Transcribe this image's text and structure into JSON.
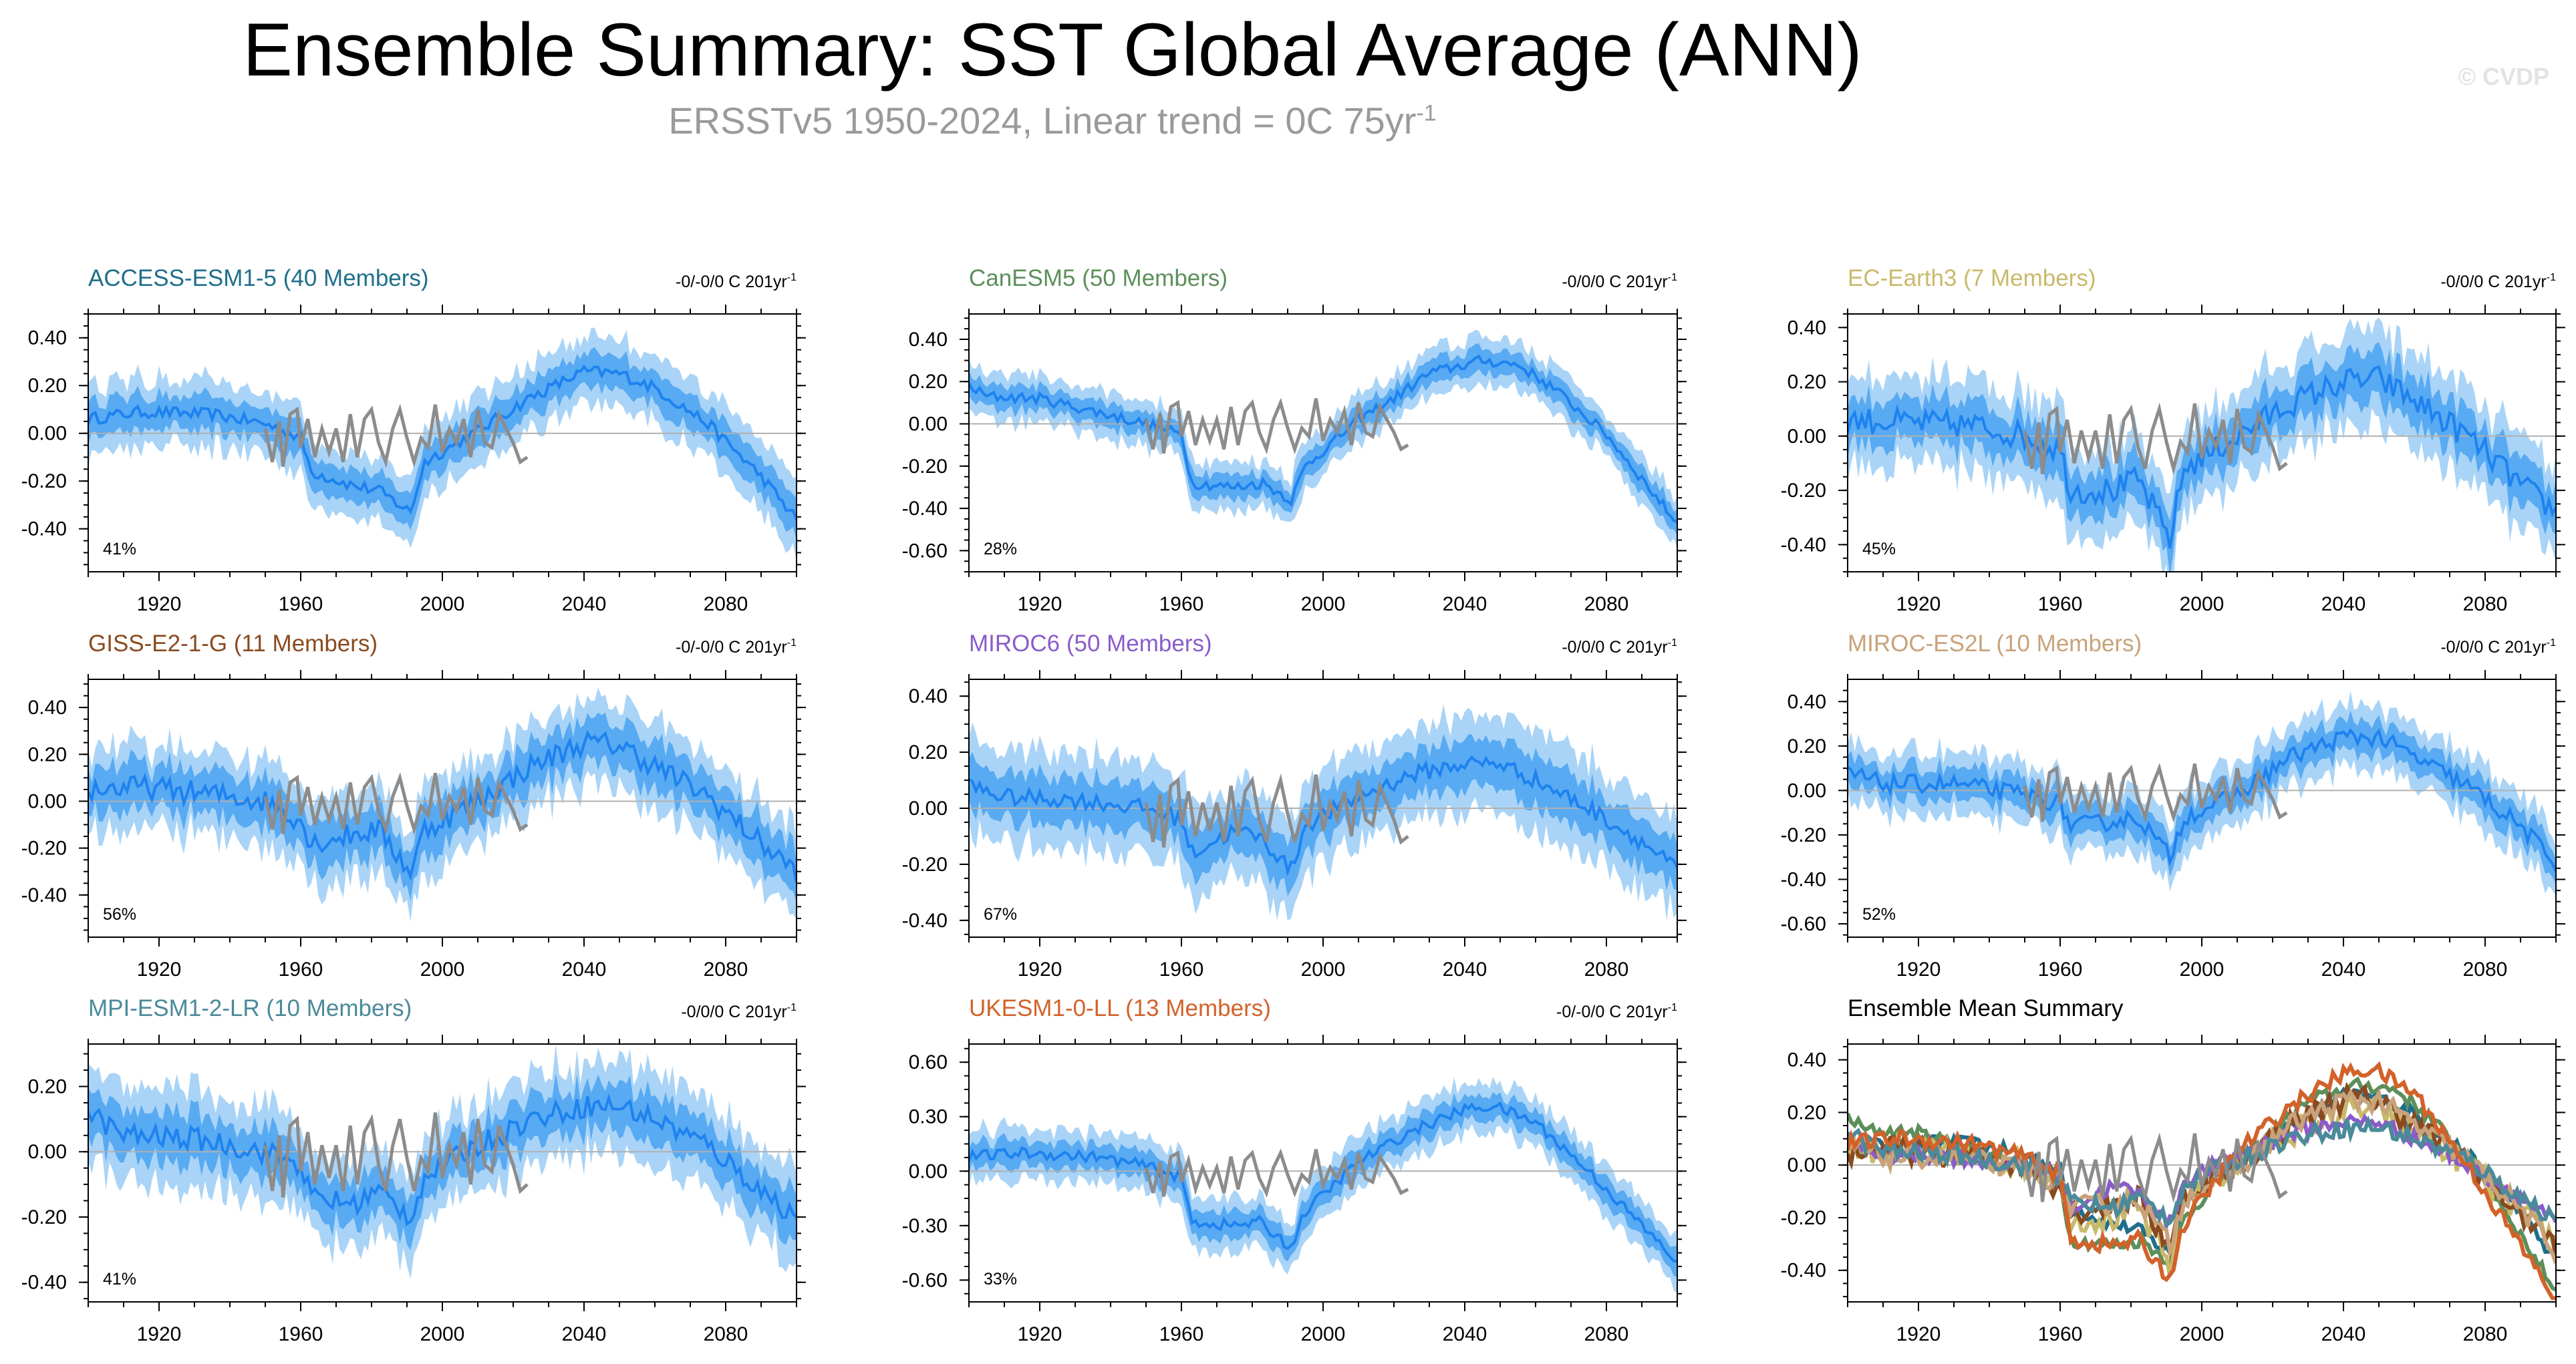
{
  "page": {
    "title": "Ensemble Summary: SST Global Average (ANN)",
    "subtitle": "ERSSTv5 1950-2024, Linear trend = 0C 75yr",
    "subtitle_sup": "-1",
    "watermark": "© CVDP"
  },
  "colors": {
    "obs": "#8c8c8c",
    "band_outer": "#a9d4f7",
    "band_inner": "#58aaf2",
    "mean_line": "#1e82f0",
    "zero_line": "#b0b0b0",
    "axis": "#000000"
  },
  "chart_data": [
    {
      "type": "line",
      "title": "ACCESS-ESM1-5 (40 Members)",
      "title_color": "#1f6f8b",
      "trend_label": "-0/-0/0 C 201yr",
      "trend_sup": "-1",
      "percent_label": "41%",
      "x_ticks": [
        1920,
        1960,
        2000,
        2040,
        2080
      ],
      "xlim": [
        1900,
        2100
      ],
      "y_ticks": [
        0.4,
        0.2,
        0.0,
        -0.2,
        -0.4
      ],
      "y_tick_labels": [
        "0.40",
        "0.20",
        "0.00",
        "-0.20",
        "-0.40"
      ],
      "ylim": [
        -0.58,
        0.5
      ],
      "mean_knots": [
        [
          1900,
          0.06
        ],
        [
          1915,
          0.09
        ],
        [
          1935,
          0.08
        ],
        [
          1950,
          0.04
        ],
        [
          1960,
          -0.02
        ],
        [
          1963,
          -0.16
        ],
        [
          1975,
          -0.22
        ],
        [
          1982,
          -0.24
        ],
        [
          1991,
          -0.33
        ],
        [
          1995,
          -0.12
        ],
        [
          2010,
          0.01
        ],
        [
          2025,
          0.15
        ],
        [
          2040,
          0.26
        ],
        [
          2050,
          0.25
        ],
        [
          2060,
          0.19
        ],
        [
          2075,
          0.04
        ],
        [
          2090,
          -0.18
        ],
        [
          2100,
          -0.36
        ]
      ],
      "noise": 0.025,
      "inner": 0.05,
      "outer": 0.1
    },
    {
      "type": "line",
      "title": "CanESM5 (50 Members)",
      "title_color": "#5c8f5a",
      "trend_label": "-0/0/0 C 201yr",
      "trend_sup": "-1",
      "percent_label": "28%",
      "x_ticks": [
        1920,
        1960,
        2000,
        2040,
        2080
      ],
      "xlim": [
        1900,
        2100
      ],
      "y_ticks": [
        0.4,
        0.2,
        0.0,
        -0.2,
        -0.4,
        -0.6
      ],
      "y_tick_labels": [
        "0.40",
        "0.20",
        "0.00",
        "-0.20",
        "-0.40",
        "-0.60"
      ],
      "ylim": [
        -0.7,
        0.52
      ],
      "mean_knots": [
        [
          1900,
          0.18
        ],
        [
          1905,
          0.13
        ],
        [
          1920,
          0.12
        ],
        [
          1935,
          0.06
        ],
        [
          1950,
          0.0
        ],
        [
          1960,
          -0.05
        ],
        [
          1963,
          -0.28
        ],
        [
          1975,
          -0.3
        ],
        [
          1983,
          -0.28
        ],
        [
          1991,
          -0.36
        ],
        [
          1995,
          -0.2
        ],
        [
          2010,
          0.02
        ],
        [
          2020,
          0.12
        ],
        [
          2030,
          0.24
        ],
        [
          2045,
          0.3
        ],
        [
          2055,
          0.28
        ],
        [
          2065,
          0.17
        ],
        [
          2080,
          -0.05
        ],
        [
          2090,
          -0.26
        ],
        [
          2100,
          -0.47
        ]
      ],
      "noise": 0.025,
      "inner": 0.04,
      "outer": 0.08
    },
    {
      "type": "line",
      "title": "EC-Earth3 (7 Members)",
      "title_color": "#c9b96a",
      "trend_label": "-0/0/0 C 201yr",
      "trend_sup": "-1",
      "percent_label": "45%",
      "x_ticks": [
        1920,
        1960,
        2000,
        2040,
        2080
      ],
      "xlim": [
        1900,
        2100
      ],
      "y_ticks": [
        0.4,
        0.2,
        0.0,
        -0.2,
        -0.4
      ],
      "y_tick_labels": [
        "0.40",
        "0.20",
        "0.00",
        "-0.20",
        "-0.40"
      ],
      "ylim": [
        -0.5,
        0.45
      ],
      "mean_knots": [
        [
          1900,
          0.06
        ],
        [
          1915,
          0.05
        ],
        [
          1935,
          0.04
        ],
        [
          1950,
          0.0
        ],
        [
          1960,
          -0.05
        ],
        [
          1963,
          -0.2
        ],
        [
          1975,
          -0.2
        ],
        [
          1982,
          -0.16
        ],
        [
          1991,
          -0.38
        ],
        [
          1995,
          -0.12
        ],
        [
          2010,
          0.0
        ],
        [
          2025,
          0.12
        ],
        [
          2040,
          0.2
        ],
        [
          2050,
          0.21
        ],
        [
          2060,
          0.13
        ],
        [
          2075,
          0.0
        ],
        [
          2090,
          -0.18
        ],
        [
          2100,
          -0.28
        ]
      ],
      "noise": 0.05,
      "inner": 0.06,
      "outer": 0.12
    },
    {
      "type": "line",
      "title": "GISS-E2-1-G (11 Members)",
      "title_color": "#8a4a1f",
      "trend_label": "-0/-0/0 C 201yr",
      "trend_sup": "-1",
      "percent_label": "56%",
      "x_ticks": [
        1920,
        1960,
        2000,
        2040,
        2080
      ],
      "xlim": [
        1900,
        2100
      ],
      "y_ticks": [
        0.4,
        0.2,
        0.0,
        -0.2,
        -0.4
      ],
      "y_tick_labels": [
        "0.40",
        "0.20",
        "0.00",
        "-0.20",
        "-0.40"
      ],
      "ylim": [
        -0.58,
        0.52
      ],
      "mean_knots": [
        [
          1900,
          0.05
        ],
        [
          1915,
          0.06
        ],
        [
          1935,
          0.03
        ],
        [
          1950,
          0.0
        ],
        [
          1960,
          -0.08
        ],
        [
          1963,
          -0.18
        ],
        [
          1975,
          -0.14
        ],
        [
          1982,
          -0.12
        ],
        [
          1991,
          -0.3
        ],
        [
          1995,
          -0.12
        ],
        [
          2010,
          0.0
        ],
        [
          2025,
          0.15
        ],
        [
          2040,
          0.25
        ],
        [
          2050,
          0.24
        ],
        [
          2060,
          0.15
        ],
        [
          2075,
          0.02
        ],
        [
          2090,
          -0.18
        ],
        [
          2100,
          -0.3
        ]
      ],
      "noise": 0.05,
      "inner": 0.07,
      "outer": 0.13
    },
    {
      "type": "line",
      "title": "MIROC6 (50 Members)",
      "title_color": "#8a5cc9",
      "trend_label": "-0/0/0 C 201yr",
      "trend_sup": "-1",
      "percent_label": "67%",
      "x_ticks": [
        1920,
        1960,
        2000,
        2040,
        2080
      ],
      "xlim": [
        1900,
        2100
      ],
      "y_ticks": [
        0.4,
        0.2,
        0.0,
        -0.2,
        -0.4
      ],
      "y_tick_labels": [
        "0.40",
        "0.20",
        "0.00",
        "-0.20",
        "-0.40"
      ],
      "ylim": [
        -0.46,
        0.46
      ],
      "mean_knots": [
        [
          1900,
          0.08
        ],
        [
          1910,
          0.04
        ],
        [
          1930,
          0.03
        ],
        [
          1950,
          0.0
        ],
        [
          1960,
          -0.04
        ],
        [
          1963,
          -0.16
        ],
        [
          1975,
          -0.08
        ],
        [
          1982,
          -0.1
        ],
        [
          1991,
          -0.22
        ],
        [
          1995,
          -0.06
        ],
        [
          2010,
          0.04
        ],
        [
          2025,
          0.12
        ],
        [
          2040,
          0.16
        ],
        [
          2050,
          0.16
        ],
        [
          2060,
          0.1
        ],
        [
          2075,
          0.0
        ],
        [
          2090,
          -0.12
        ],
        [
          2100,
          -0.22
        ]
      ],
      "noise": 0.03,
      "inner": 0.06,
      "outer": 0.12
    },
    {
      "type": "line",
      "title": "MIROC-ES2L (10 Members)",
      "title_color": "#c8a27a",
      "trend_label": "-0/0/0 C 201yr",
      "trend_sup": "-1",
      "percent_label": "52%",
      "x_ticks": [
        1920,
        1960,
        2000,
        2040,
        2080
      ],
      "xlim": [
        1900,
        2100
      ],
      "y_ticks": [
        0.4,
        0.2,
        0.0,
        -0.2,
        -0.4,
        -0.6
      ],
      "y_tick_labels": [
        "0.40",
        "0.20",
        "0.00",
        "-0.20",
        "-0.40",
        "-0.60"
      ],
      "ylim": [
        -0.66,
        0.5
      ],
      "mean_knots": [
        [
          1900,
          0.08
        ],
        [
          1910,
          0.03
        ],
        [
          1930,
          0.03
        ],
        [
          1950,
          -0.02
        ],
        [
          1960,
          -0.06
        ],
        [
          1963,
          -0.16
        ],
        [
          1975,
          -0.14
        ],
        [
          1982,
          -0.12
        ],
        [
          1991,
          -0.3
        ],
        [
          1995,
          -0.12
        ],
        [
          2010,
          -0.02
        ],
        [
          2025,
          0.15
        ],
        [
          2040,
          0.24
        ],
        [
          2050,
          0.24
        ],
        [
          2060,
          0.15
        ],
        [
          2075,
          0.02
        ],
        [
          2090,
          -0.16
        ],
        [
          2100,
          -0.33
        ]
      ],
      "noise": 0.04,
      "inner": 0.05,
      "outer": 0.1
    },
    {
      "type": "line",
      "title": "MPI-ESM1-2-LR (10 Members)",
      "title_color": "#4a8a9a",
      "trend_label": "-0/0/0 C 201yr",
      "trend_sup": "-1",
      "percent_label": "41%",
      "x_ticks": [
        1920,
        1960,
        2000,
        2040,
        2080
      ],
      "xlim": [
        1900,
        2100
      ],
      "y_ticks": [
        0.2,
        0.0,
        -0.2,
        -0.4
      ],
      "y_tick_labels": [
        "0.20",
        "0.00",
        "-0.20",
        "-0.40"
      ],
      "ylim": [
        -0.46,
        0.33
      ],
      "mean_knots": [
        [
          1900,
          0.12
        ],
        [
          1910,
          0.05
        ],
        [
          1930,
          0.04
        ],
        [
          1950,
          0.0
        ],
        [
          1960,
          -0.04
        ],
        [
          1963,
          -0.14
        ],
        [
          1975,
          -0.16
        ],
        [
          1982,
          -0.12
        ],
        [
          1991,
          -0.2
        ],
        [
          1995,
          -0.08
        ],
        [
          2010,
          0.02
        ],
        [
          2025,
          0.1
        ],
        [
          2040,
          0.14
        ],
        [
          2050,
          0.14
        ],
        [
          2060,
          0.1
        ],
        [
          2075,
          0.02
        ],
        [
          2090,
          -0.12
        ],
        [
          2100,
          -0.2
        ]
      ],
      "noise": 0.035,
      "inner": 0.05,
      "outer": 0.1
    },
    {
      "type": "line",
      "title": "UKESM1-0-LL (13 Members)",
      "title_color": "#d2622a",
      "trend_label": "-0/-0/0 C 201yr",
      "trend_sup": "-1",
      "percent_label": "33%",
      "x_ticks": [
        1920,
        1960,
        2000,
        2040,
        2080
      ],
      "xlim": [
        1900,
        2100
      ],
      "y_ticks": [
        0.6,
        0.3,
        0.0,
        -0.3,
        -0.6
      ],
      "y_tick_labels": [
        "0.60",
        "0.30",
        "0.00",
        "-0.30",
        "-0.60"
      ],
      "ylim": [
        -0.72,
        0.7
      ],
      "mean_knots": [
        [
          1900,
          0.08
        ],
        [
          1915,
          0.1
        ],
        [
          1935,
          0.08
        ],
        [
          1950,
          0.03
        ],
        [
          1960,
          -0.04
        ],
        [
          1963,
          -0.28
        ],
        [
          1975,
          -0.3
        ],
        [
          1982,
          -0.28
        ],
        [
          1991,
          -0.42
        ],
        [
          1995,
          -0.22
        ],
        [
          2010,
          0.05
        ],
        [
          2025,
          0.22
        ],
        [
          2040,
          0.34
        ],
        [
          2048,
          0.36
        ],
        [
          2060,
          0.27
        ],
        [
          2075,
          0.0
        ],
        [
          2090,
          -0.3
        ],
        [
          2100,
          -0.5
        ]
      ],
      "noise": 0.03,
      "inner": 0.05,
      "outer": 0.1
    },
    {
      "type": "line",
      "title": "Ensemble Mean Summary",
      "title_color": "#000000",
      "trend_label": "",
      "trend_sup": "",
      "percent_label": "",
      "summary": true,
      "x_ticks": [
        1920,
        1960,
        2000,
        2040,
        2080
      ],
      "xlim": [
        1900,
        2100
      ],
      "y_ticks": [
        0.4,
        0.2,
        0.0,
        -0.2,
        -0.4
      ],
      "y_tick_labels": [
        "0.40",
        "0.20",
        "0.00",
        "-0.20",
        "-0.40"
      ],
      "ylim": [
        -0.52,
        0.46
      ],
      "series_colors": [
        "#1f6f8b",
        "#5c8f5a",
        "#c9b96a",
        "#8a4a1f",
        "#8a5cc9",
        "#c8a27a",
        "#4a8a9a",
        "#d2622a"
      ]
    }
  ],
  "observations": {
    "name": "ERSSTv5 1950-2024",
    "years": [
      1950,
      1952,
      1954,
      1955,
      1957,
      1959,
      1960,
      1962,
      1964,
      1966,
      1968,
      1970,
      1972,
      1974,
      1976,
      1978,
      1980,
      1982,
      1984,
      1986,
      1988,
      1990,
      1992,
      1994,
      1996,
      1998,
      2000,
      2002,
      2004,
      2006,
      2008,
      2010,
      2012,
      2014,
      2016,
      2018,
      2020,
      2022,
      2024
    ],
    "values": [
      0.02,
      -0.12,
      0.05,
      -0.14,
      0.08,
      0.1,
      -0.06,
      0.06,
      -0.1,
      0.02,
      -0.08,
      0.02,
      -0.12,
      0.08,
      -0.1,
      0.06,
      0.1,
      -0.04,
      -0.12,
      0.02,
      0.1,
      -0.02,
      -0.12,
      -0.02,
      -0.06,
      0.12,
      -0.08,
      0.02,
      -0.04,
      0.06,
      -0.1,
      0.1,
      -0.04,
      -0.06,
      0.08,
      0.02,
      -0.04,
      -0.12,
      -0.1
    ]
  }
}
